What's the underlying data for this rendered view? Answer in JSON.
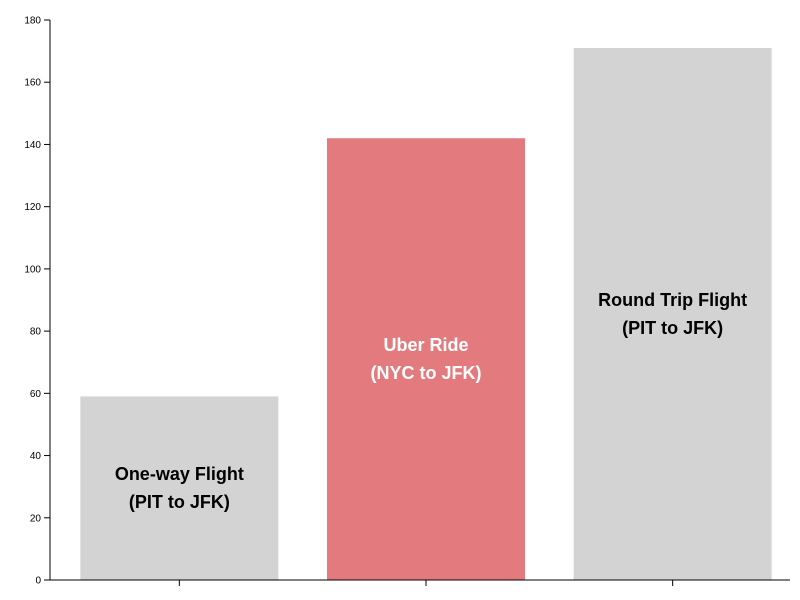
{
  "chart_data": {
    "type": "bar",
    "categories": [
      "One-way Flight (PIT to JFK)",
      "Uber Ride (NYC to JFK)",
      "Round Trip Flight (PIT to JFK)"
    ],
    "values": [
      59,
      142,
      171
    ],
    "bar_labels": [
      [
        "One-way Flight",
        "(PIT to JFK)"
      ],
      [
        "Uber Ride",
        "(NYC to JFK)"
      ],
      [
        "Round Trip Flight",
        "(PIT to JFK)"
      ]
    ],
    "bar_colors": [
      "#d3d3d3",
      "#e37b7e",
      "#d3d3d3"
    ],
    "label_colors": [
      "#000000",
      "#ffffff",
      "#000000"
    ],
    "ylim": [
      0,
      180
    ],
    "yticks": [
      0,
      20,
      40,
      60,
      80,
      100,
      120,
      140,
      160,
      180
    ],
    "title": "",
    "xlabel": "",
    "ylabel": "",
    "grid": false,
    "legend": "none"
  }
}
